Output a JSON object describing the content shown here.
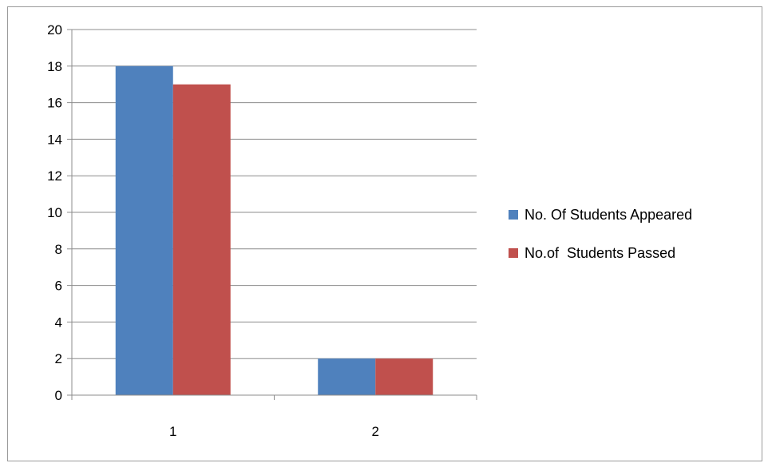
{
  "chart_data": {
    "type": "bar",
    "categories": [
      "1",
      "2"
    ],
    "series": [
      {
        "name": "No. Of Students Appeared",
        "values": [
          18,
          2
        ],
        "color": "#4f81bd"
      },
      {
        "name": "No.of  Students Passed",
        "values": [
          17,
          2
        ],
        "color": "#c0504d"
      }
    ],
    "title": "",
    "xlabel": "",
    "ylabel": "",
    "ylim": [
      0,
      20
    ],
    "y_ticks": [
      "0",
      "2",
      "4",
      "6",
      "8",
      "10",
      "12",
      "14",
      "16",
      "18",
      "20"
    ],
    "grid": true,
    "legend_position": "right"
  }
}
